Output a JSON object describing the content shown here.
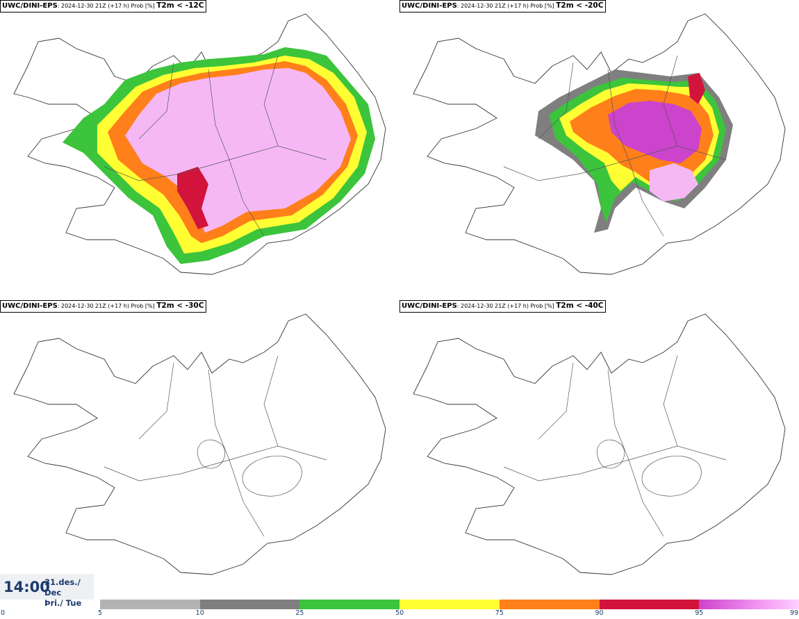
{
  "panels": [
    {
      "source": "UWC/DINI-EPS",
      "run_info": ": 2024-12-30 21Z (+17 h) Prob [%]",
      "variable": "T2m < -12C"
    },
    {
      "source": "UWC/DINI-EPS",
      "run_info": ": 2024-12-30 21Z (+17 h) Prob [%]",
      "variable": "T2m < -20C"
    },
    {
      "source": "UWC/DINI-EPS",
      "run_info": ": 2024-12-30 21Z (+17 h) Prob [%]",
      "variable": "T2m < -30C"
    },
    {
      "source": "UWC/DINI-EPS",
      "run_info": ": 2024-12-30 21Z (+17 h) Prob [%]",
      "variable": "T2m < -40C"
    }
  ],
  "time": {
    "clock": "14:00",
    "date_line1": "31.des./ Dec",
    "date_line2": "Þri./ Tue"
  },
  "legend": {
    "ticks": [
      "0",
      "5",
      "10",
      "25",
      "50",
      "75",
      "90",
      "95",
      "99"
    ],
    "colors": [
      "#b3b3b3",
      "#7f7f7f",
      "#3cc43c",
      "#ffff33",
      "#ff7f1a",
      "#d2143c",
      "#cc44cc"
    ],
    "top_gradient": [
      "#ee88ee",
      "#ffd0ff"
    ]
  }
}
